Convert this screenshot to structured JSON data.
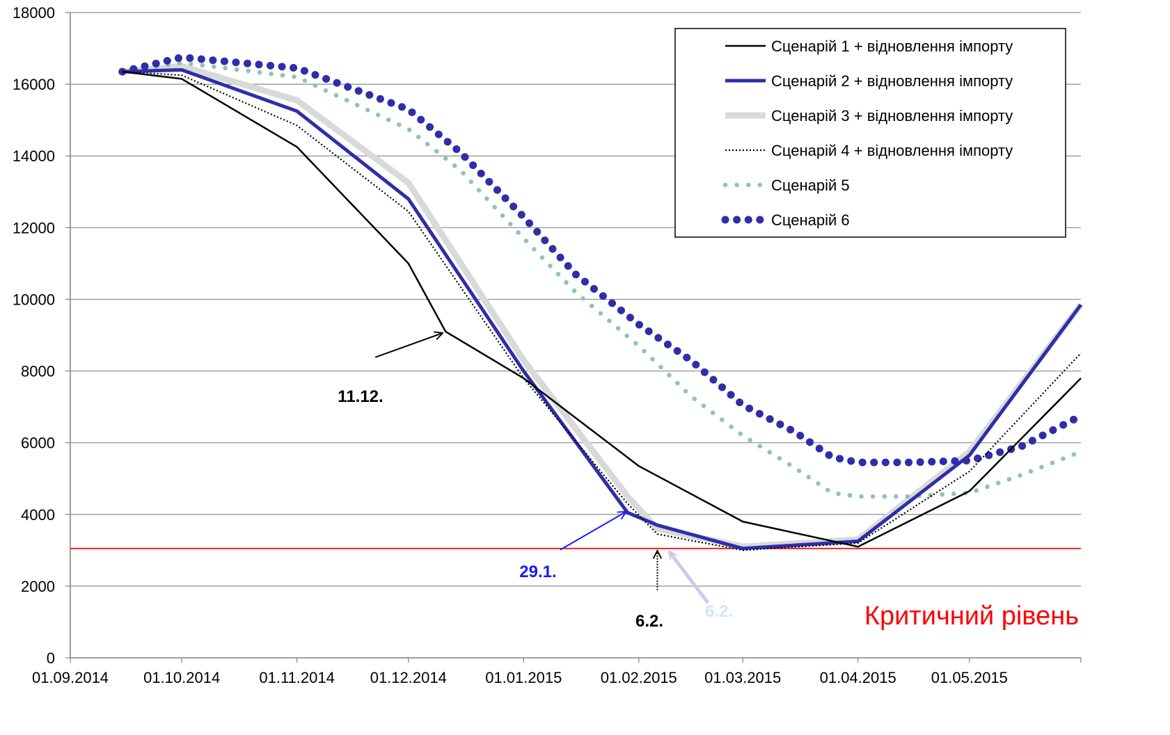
{
  "chart_data": {
    "type": "line",
    "title": "",
    "xlabel": "",
    "ylabel": "",
    "ylim": [
      0,
      18000
    ],
    "yticks": [
      0,
      2000,
      4000,
      6000,
      8000,
      10000,
      12000,
      14000,
      16000,
      18000
    ],
    "xlim": [
      "2014-09-01",
      "2015-05-31"
    ],
    "xticks": [
      {
        "date": "2014-09-01",
        "label": "01.09.2014"
      },
      {
        "date": "2014-10-01",
        "label": "01.10.2014"
      },
      {
        "date": "2014-11-01",
        "label": "01.11.2014"
      },
      {
        "date": "2014-12-01",
        "label": "01.12.2014"
      },
      {
        "date": "2015-01-01",
        "label": "01.01.2015"
      },
      {
        "date": "2015-02-01",
        "label": "01.02.2015"
      },
      {
        "date": "2015-03-01",
        "label": "01.03.2015"
      },
      {
        "date": "2015-04-01",
        "label": "01.04.2015"
      },
      {
        "date": "2015-05-01",
        "label": "01.05.2015"
      }
    ],
    "grid": "horizontal",
    "legend_position": "top-right",
    "series": [
      {
        "name": "Сценарій 1 + відновлення імпорту",
        "color": "#000000",
        "style": "solid-thin",
        "points": [
          [
            "2014-09-15",
            16350
          ],
          [
            "2014-10-01",
            16150
          ],
          [
            "2014-11-01",
            14250
          ],
          [
            "2014-12-01",
            11000
          ],
          [
            "2014-12-11",
            9100
          ],
          [
            "2015-01-01",
            7800
          ],
          [
            "2015-02-01",
            5350
          ],
          [
            "2015-03-01",
            3800
          ],
          [
            "2015-04-01",
            3100
          ],
          [
            "2015-05-01",
            4650
          ],
          [
            "2015-05-31",
            7800
          ]
        ]
      },
      {
        "name": "Сценарій 2 + відновлення імпорту",
        "color": "#2e2eaa",
        "style": "solid-thick",
        "points": [
          [
            "2014-09-15",
            16350
          ],
          [
            "2014-10-01",
            16400
          ],
          [
            "2014-11-01",
            15250
          ],
          [
            "2014-12-01",
            12800
          ],
          [
            "2015-01-01",
            8000
          ],
          [
            "2015-01-29",
            4050
          ],
          [
            "2015-02-06",
            3700
          ],
          [
            "2015-03-01",
            3050
          ],
          [
            "2015-04-01",
            3250
          ],
          [
            "2015-05-01",
            5650
          ],
          [
            "2015-05-31",
            9850
          ]
        ]
      },
      {
        "name": "Сценарій 3 + відновлення імпорту",
        "color": "#d9d9d9",
        "style": "solid-wide",
        "points": [
          [
            "2014-09-15",
            16350
          ],
          [
            "2014-10-01",
            16500
          ],
          [
            "2014-11-01",
            15550
          ],
          [
            "2014-12-01",
            13250
          ],
          [
            "2015-01-01",
            8300
          ],
          [
            "2015-01-29",
            4500
          ],
          [
            "2015-02-06",
            3600
          ],
          [
            "2015-03-01",
            3100
          ],
          [
            "2015-04-01",
            3300
          ],
          [
            "2015-05-01",
            5750
          ],
          [
            "2015-05-31",
            9850
          ]
        ]
      },
      {
        "name": "Сценарій 4 + відновлення імпорту",
        "color": "#000000",
        "style": "dotted-thin",
        "points": [
          [
            "2014-09-15",
            16350
          ],
          [
            "2014-10-01",
            16250
          ],
          [
            "2014-11-01",
            14850
          ],
          [
            "2014-12-01",
            12450
          ],
          [
            "2015-01-01",
            7800
          ],
          [
            "2015-01-29",
            4300
          ],
          [
            "2015-02-06",
            3450
          ],
          [
            "2015-03-01",
            3000
          ],
          [
            "2015-04-01",
            3200
          ],
          [
            "2015-05-01",
            5200
          ],
          [
            "2015-05-31",
            8500
          ]
        ]
      },
      {
        "name": "Сценарій 5",
        "color": "#8fc4b4",
        "style": "dotted-thick",
        "points": [
          [
            "2014-09-15",
            16350
          ],
          [
            "2014-10-01",
            16600
          ],
          [
            "2014-11-01",
            16200
          ],
          [
            "2014-12-01",
            14750
          ],
          [
            "2014-12-15",
            13600
          ],
          [
            "2015-01-01",
            11700
          ],
          [
            "2015-01-15",
            10200
          ],
          [
            "2015-02-01",
            8700
          ],
          [
            "2015-02-15",
            7300
          ],
          [
            "2015-03-01",
            6200
          ],
          [
            "2015-03-15",
            5300
          ],
          [
            "2015-03-25",
            4600
          ],
          [
            "2015-04-01",
            4500
          ],
          [
            "2015-04-15",
            4500
          ],
          [
            "2015-05-01",
            4600
          ],
          [
            "2015-05-15",
            5100
          ],
          [
            "2015-05-31",
            5750
          ]
        ]
      },
      {
        "name": "Сценарій 6",
        "color": "#2e2eaa",
        "style": "dotted-heavy",
        "points": [
          [
            "2014-09-15",
            16350
          ],
          [
            "2014-10-01",
            16750
          ],
          [
            "2014-11-01",
            16450
          ],
          [
            "2014-12-01",
            15300
          ],
          [
            "2014-12-15",
            14100
          ],
          [
            "2015-01-01",
            12300
          ],
          [
            "2015-01-15",
            10700
          ],
          [
            "2015-02-01",
            9300
          ],
          [
            "2015-02-15",
            8300
          ],
          [
            "2015-03-01",
            7050
          ],
          [
            "2015-03-15",
            6300
          ],
          [
            "2015-03-25",
            5600
          ],
          [
            "2015-04-01",
            5450
          ],
          [
            "2015-04-15",
            5450
          ],
          [
            "2015-05-01",
            5500
          ],
          [
            "2015-05-15",
            5900
          ],
          [
            "2015-05-31",
            6750
          ]
        ]
      }
    ],
    "critical_level": {
      "value": 3050,
      "color": "#ff0000",
      "label": "Критичний рівень"
    },
    "annotations": [
      {
        "label": "11.12.",
        "color": "#000000",
        "arrow_color": "#000000",
        "target": [
          "2014-12-11",
          9100
        ]
      },
      {
        "label": "29.1.",
        "color": "#1a1aff",
        "arrow_color": "#1a1aff",
        "target": [
          "2015-01-29",
          4000
        ]
      },
      {
        "label": "6.2.",
        "color": "#000000",
        "arrow_color": "#000000",
        "target": [
          "2015-02-06",
          3050
        ]
      },
      {
        "label": "6.2.",
        "color": "#cfe7f7",
        "arrow_color": "#c8cbe8",
        "target": [
          "2015-02-08",
          3050
        ]
      }
    ]
  }
}
